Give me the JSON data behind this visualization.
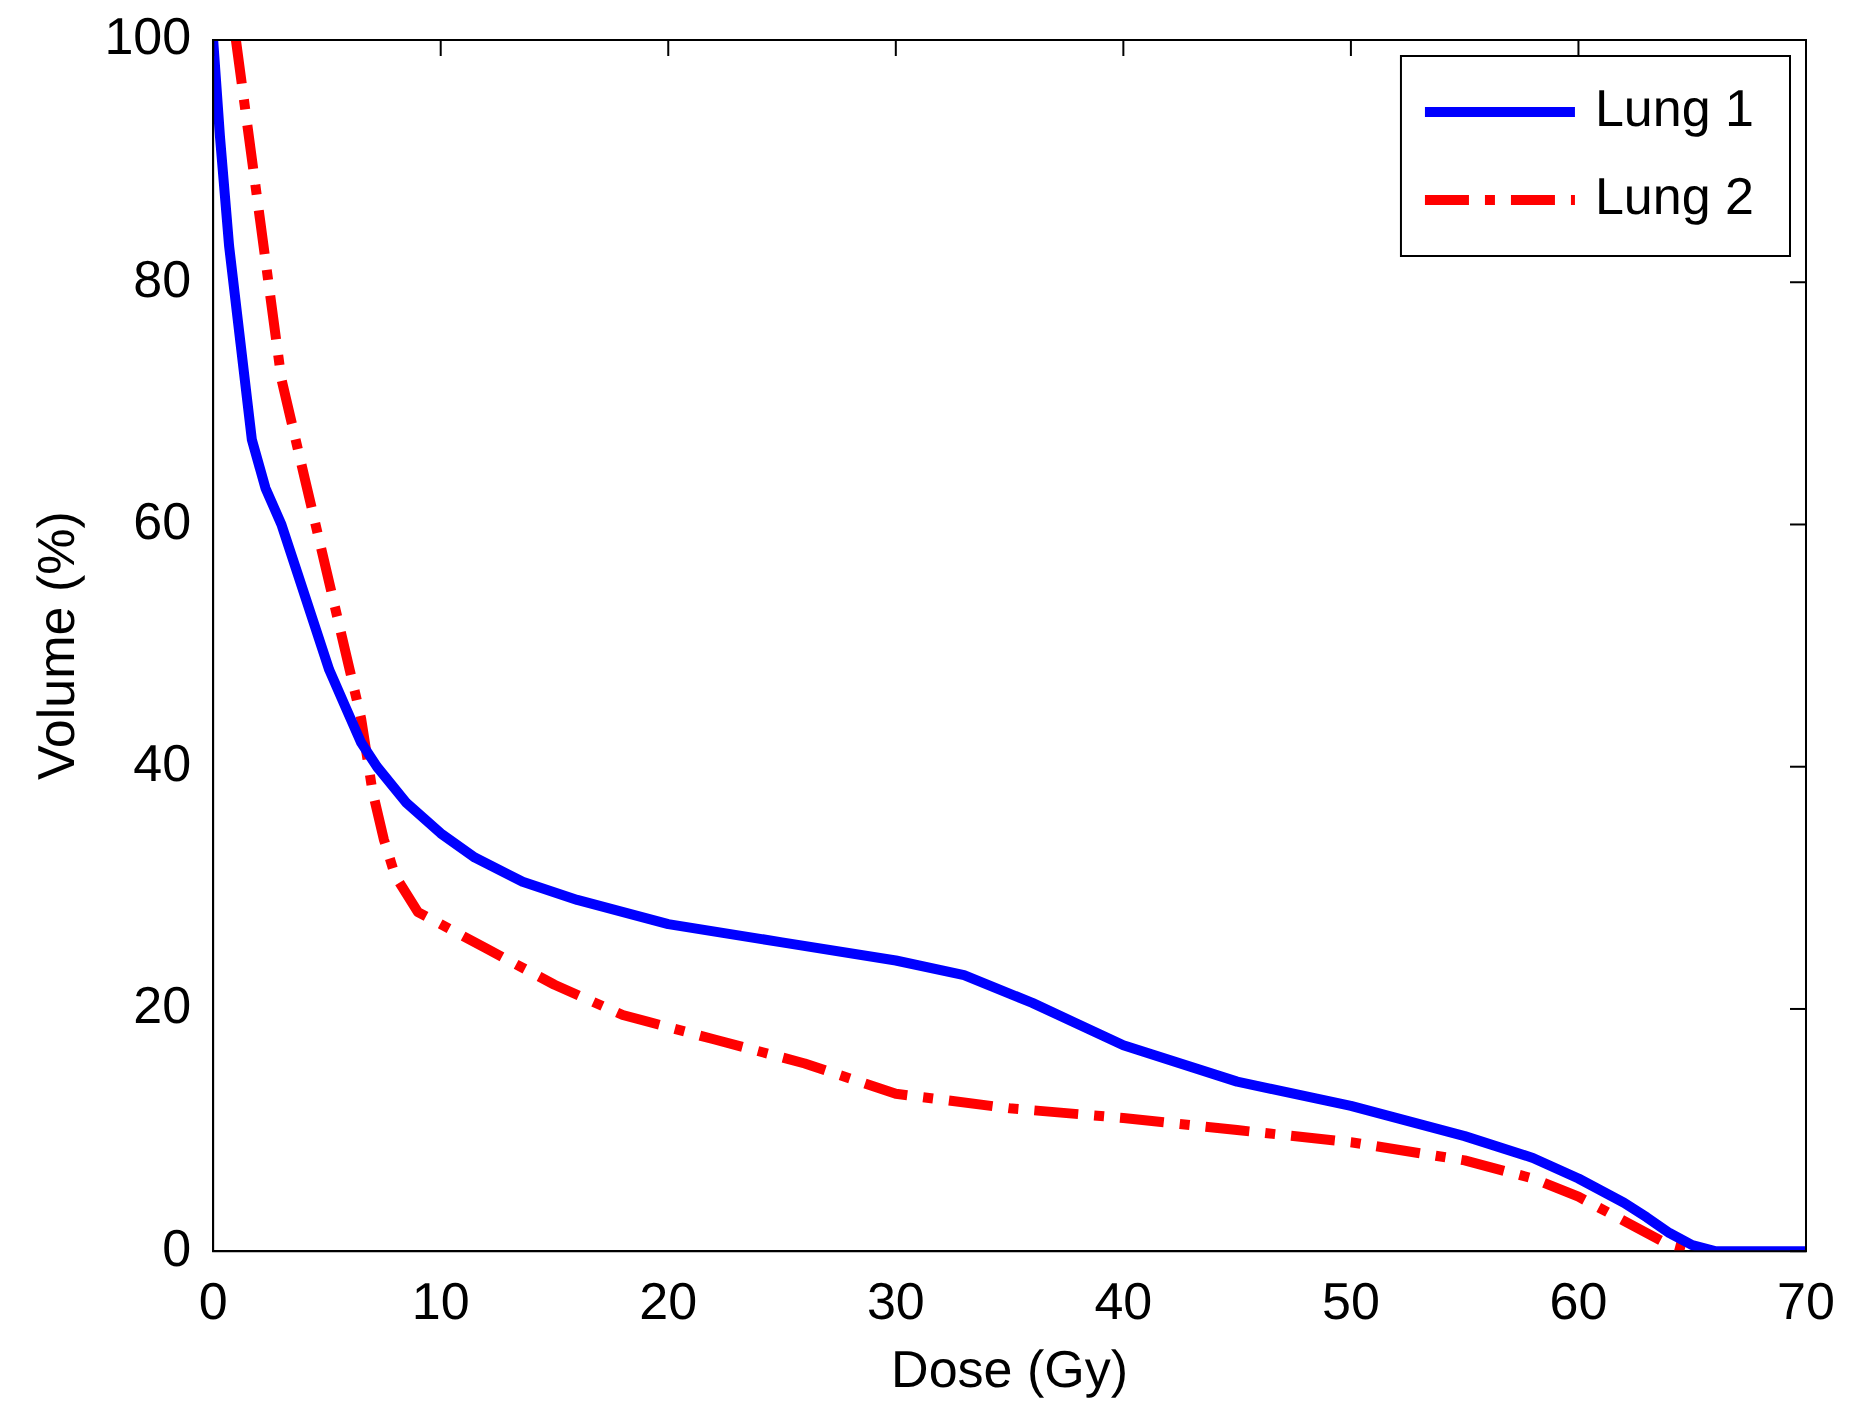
{
  "chart_data": {
    "type": "line",
    "xlabel": "Dose (Gy)",
    "ylabel": "Volume (%)",
    "xlim": [
      0,
      70
    ],
    "xticks": [
      0,
      10,
      20,
      30,
      40,
      50,
      60,
      70
    ],
    "ylim": [
      0,
      100
    ],
    "yticks": [
      0,
      20,
      40,
      60,
      80,
      100
    ],
    "grid": false,
    "legend": "top right",
    "marker": "none",
    "series": [
      {
        "name": "Lung 1",
        "color": "#0000ff",
        "line_style": "solid",
        "x": [
          0,
          0.3,
          0.7,
          1.2,
          1.7,
          2.3,
          3,
          3.7,
          4.4,
          5.1,
          5.8,
          6.5,
          7.2,
          8.5,
          10,
          11.5,
          13.6,
          16,
          20,
          25,
          30,
          33,
          36,
          40,
          45,
          50,
          55,
          58,
          60,
          62,
          63,
          64,
          65,
          66,
          70
        ],
        "values": [
          100,
          92,
          83,
          75,
          67,
          63,
          60,
          56,
          52,
          48,
          45,
          42,
          40,
          37,
          34.5,
          32.5,
          30.5,
          29,
          27,
          25.5,
          24,
          22.8,
          20.5,
          17,
          14,
          12,
          9.5,
          7.7,
          6,
          4,
          2.8,
          1.5,
          0.5,
          0,
          0
        ]
      },
      {
        "name": "Lung 2",
        "color": "#ff0000",
        "line_style": "dashdot",
        "x": [
          1,
          1.5,
          2,
          2.5,
          3,
          3.5,
          4,
          5,
          6,
          6.5,
          7,
          7.5,
          8,
          9,
          10,
          12,
          15,
          18,
          22,
          26,
          30,
          35,
          40,
          45,
          50,
          55,
          58,
          60,
          62,
          64,
          65,
          66
        ],
        "values": [
          100,
          93,
          86,
          79,
          72,
          68,
          64,
          56,
          48,
          44,
          38,
          34,
          31,
          28,
          27,
          25,
          22,
          19.5,
          17.5,
          15.5,
          13,
          11.8,
          11,
          10,
          9,
          7.5,
          6,
          4.5,
          2.5,
          0.5,
          0,
          0
        ]
      }
    ]
  }
}
